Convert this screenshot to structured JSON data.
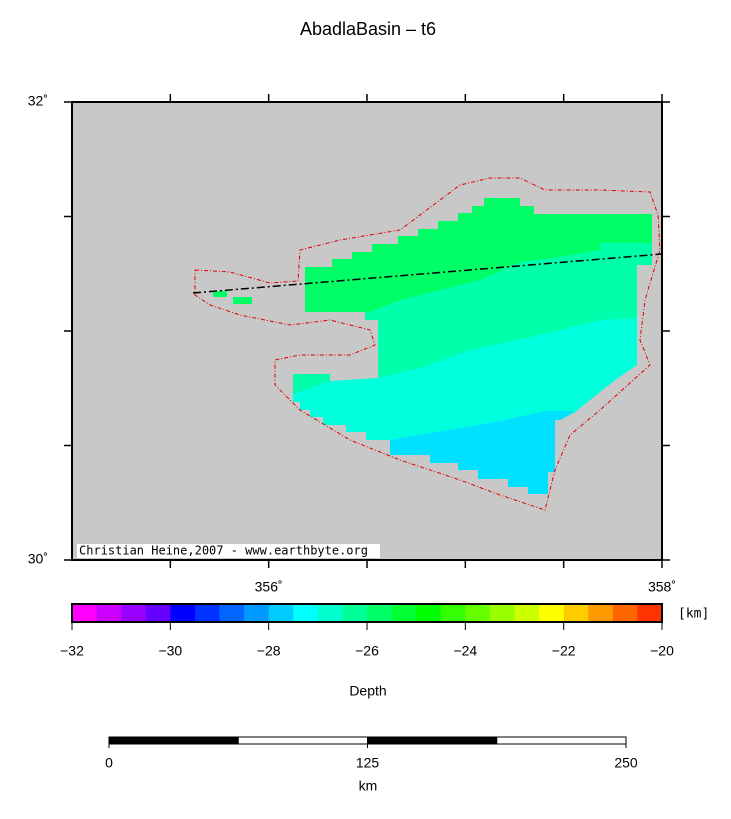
{
  "title": "AbadlaBasin – t6",
  "map": {
    "xlim": [
      355,
      358
    ],
    "ylim": [
      30,
      32
    ],
    "xticks": [
      {
        "value": 356,
        "label": "356˚"
      },
      {
        "value": 358,
        "label": "358˚"
      }
    ],
    "x_minor_ticks": [
      355.5,
      356.5,
      357,
      357.5
    ],
    "yticks": [
      {
        "value": 30,
        "label": "30˚"
      },
      {
        "value": 32,
        "label": "32˚"
      }
    ],
    "y_minor_ticks": [
      30.5,
      31,
      31.5
    ],
    "credit": "Christian Heine,2007 - www.earthbyte.org"
  },
  "colorbar": {
    "label": "Depth",
    "unit": "[km]",
    "lim": [
      -32,
      -20
    ],
    "ticks": [
      {
        "value": -32,
        "label": "−32"
      },
      {
        "value": -30,
        "label": "−30"
      },
      {
        "value": -28,
        "label": "−28"
      },
      {
        "value": -26,
        "label": "−26"
      },
      {
        "value": -24,
        "label": "−24"
      },
      {
        "value": -22,
        "label": "−22"
      },
      {
        "value": -20,
        "label": "−20"
      }
    ],
    "colors": [
      "#ff00ff",
      "#cc00ff",
      "#9900ff",
      "#6600ff",
      "#0000ff",
      "#0033ff",
      "#0066ff",
      "#0099ff",
      "#00ccff",
      "#00ffff",
      "#00ffcc",
      "#00ff99",
      "#00ff66",
      "#00ff33",
      "#00ff00",
      "#33ff00",
      "#66ff00",
      "#99ff00",
      "#ccff00",
      "#ffff00",
      "#ffcc00",
      "#ff9900",
      "#ff6600",
      "#ff3300"
    ]
  },
  "scalebar": {
    "unit": "km",
    "lim": [
      0,
      250
    ],
    "ticks": [
      0,
      125,
      250
    ],
    "segment_colors": [
      "#000000",
      "#ffffff",
      "#000000",
      "#ffffff"
    ]
  }
}
